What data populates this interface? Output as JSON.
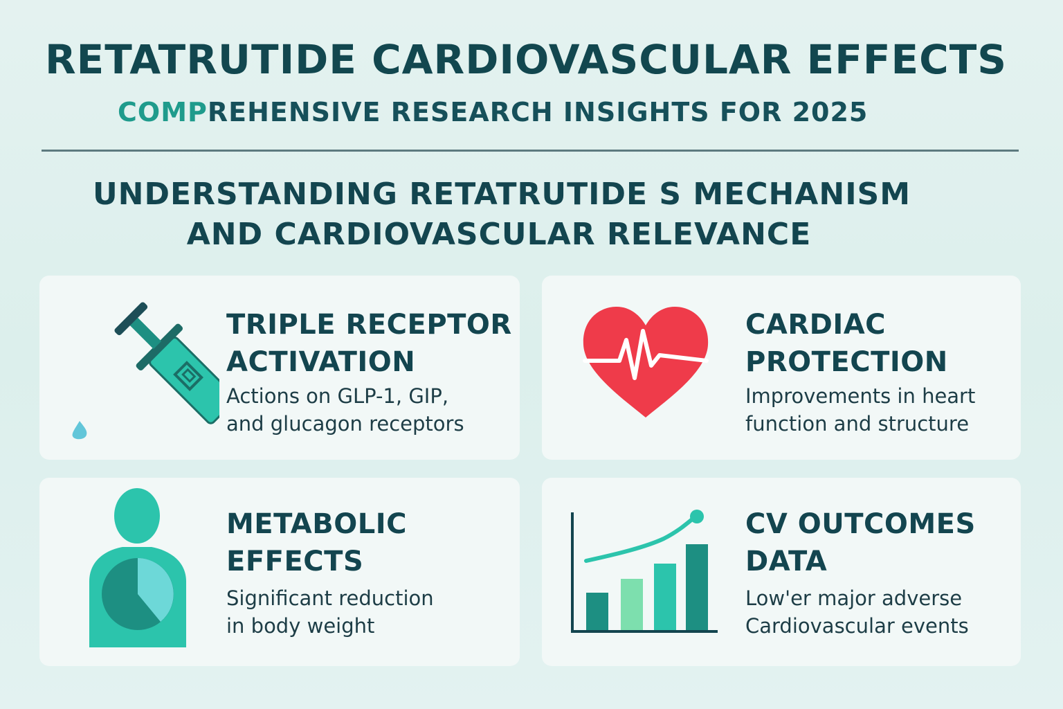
{
  "header": {
    "title": "RETATRUTIDE CARDIOVASCULAR EFFECTS",
    "subtitle_accent": "COMP",
    "subtitle_rest": "REHENSIVE RESEARCH INSIGHTS FOR 2025"
  },
  "section": {
    "heading_line1": "UNDERSTANDING RETATRUTIDE S MECHANISM",
    "heading_line2": "AND CARDIOVASCULAR RELEVANCE"
  },
  "cards": [
    {
      "icon": "syringe-icon",
      "title_line1": "TRIPLE RECEPTOR",
      "title_line2": "ACTIVATION",
      "desc_line1": "Actions on GLP-1, GIP,",
      "desc_line2": "and glucagon receptors"
    },
    {
      "icon": "heart-pulse-icon",
      "title_line1": "CARDIAC",
      "title_line2": "PROTECTION",
      "desc_line1": "Improvements in heart",
      "desc_line2": "function and structure"
    },
    {
      "icon": "body-chart-icon",
      "title_line1": "METABOLIC",
      "title_line2": "EFFECTS",
      "desc_line1": "Significant reduction",
      "desc_line2": "in body weight"
    },
    {
      "icon": "bar-chart-icon",
      "title_line1": "CV OUTCOMES",
      "title_line2": "DATA",
      "desc_line1": "Low'er major adverse",
      "desc_line2": "Cardiovascular events"
    }
  ],
  "colors": {
    "background": "#dfefed",
    "heading": "#13454f",
    "accent": "#1f9b8c",
    "teal": "#2cc4ac",
    "dark_teal": "#1d8f82",
    "heart_red": "#ef3b4a",
    "card_bg": "#f2f8f7"
  }
}
